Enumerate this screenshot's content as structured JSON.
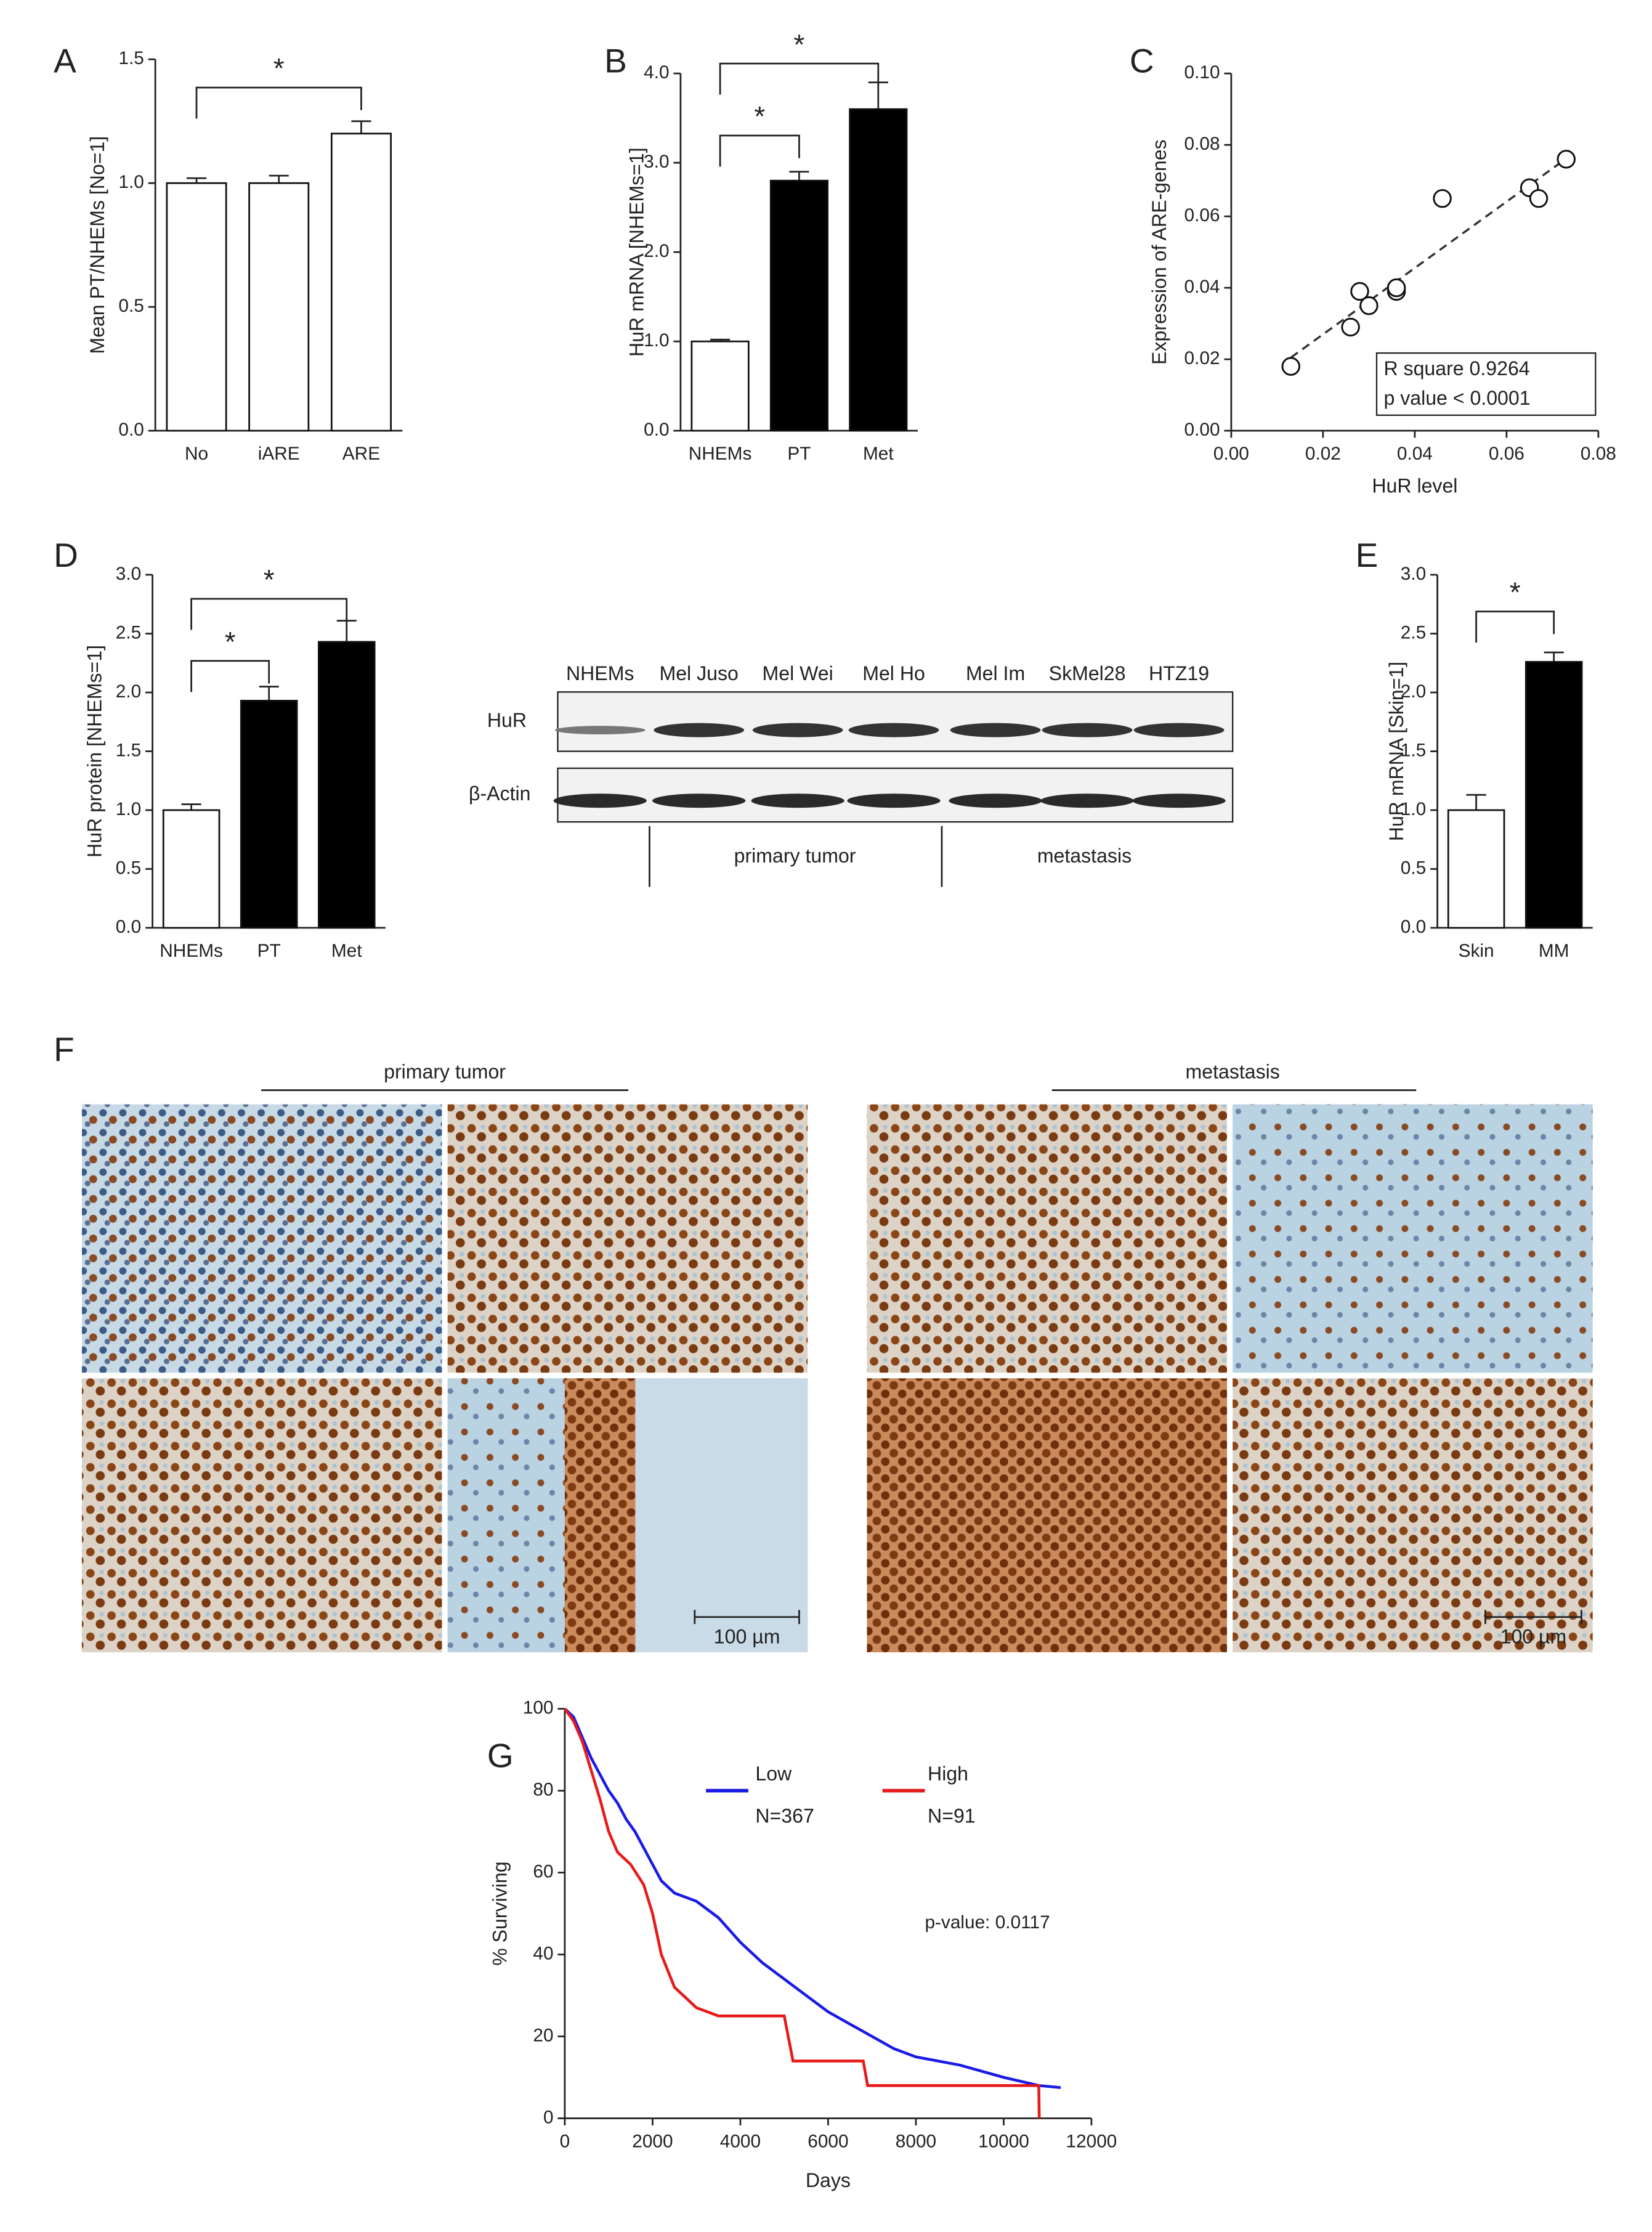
{
  "chart_data": [
    {
      "type": "bar",
      "panel": "A",
      "ylabel": "Mean PT/NHEMs [No=1]",
      "categories": [
        "No",
        "iARE",
        "ARE"
      ],
      "values": [
        1.0,
        1.0,
        1.2
      ],
      "errors": [
        0.02,
        0.03,
        0.05
      ],
      "colors": [
        "#ffffff",
        "#ffffff",
        "#ffffff"
      ],
      "ylim": [
        0,
        1.5
      ],
      "yticks": [
        {
          "value": 0,
          "label": "0.0"
        },
        0.5,
        {
          "value": 1,
          "label": "1.0"
        },
        1.5
      ],
      "annotations": [
        "*"
      ]
    },
    {
      "type": "bar",
      "panel": "B",
      "ylabel": "HuR mRNA [NHEMs=1]",
      "categories": [
        "NHEMs",
        "PT",
        "Met"
      ],
      "values": [
        1.0,
        2.8,
        3.6
      ],
      "errors": [
        0.02,
        0.1,
        0.3
      ],
      "colors": [
        "#ffffff",
        "#000000",
        "#000000"
      ],
      "ylim": [
        0,
        4
      ],
      "yticks": [
        {
          "value": 0,
          "label": "0.0"
        },
        {
          "value": 1,
          "label": "1.0"
        },
        {
          "value": 2,
          "label": "2.0"
        },
        {
          "value": 3,
          "label": "3.0"
        },
        {
          "value": 4,
          "label": "4.0"
        }
      ],
      "annotations": [
        "*",
        "*"
      ]
    },
    {
      "type": "scatter",
      "panel": "C",
      "xlabel": "HuR level",
      "ylabel": "Expression of ARE-genes",
      "x": [
        0.013,
        0.026,
        0.028,
        0.03,
        0.036,
        0.036,
        0.046,
        0.065,
        0.067,
        0.073
      ],
      "values": [
        0.018,
        0.029,
        0.039,
        0.035,
        0.039,
        0.04,
        0.065,
        0.068,
        0.065,
        0.076
      ],
      "xlim": [
        0,
        0.08
      ],
      "xticks": [
        {
          "value": 0,
          "label": "0.00"
        },
        {
          "value": 0.02,
          "label": "0.02"
        },
        {
          "value": 0.04,
          "label": "0.04"
        },
        {
          "value": 0.06,
          "label": "0.06"
        },
        {
          "value": 0.08,
          "label": "0.08"
        }
      ],
      "ylim": [
        0,
        0.1
      ],
      "yticks": [
        {
          "value": 0,
          "label": "0.00"
        },
        {
          "value": 0.02,
          "label": "0.02"
        },
        {
          "value": 0.04,
          "label": "0.04"
        },
        {
          "value": 0.06,
          "label": "0.06"
        },
        {
          "value": 0.08,
          "label": "0.08"
        },
        {
          "value": 0.1,
          "label": "0.10"
        }
      ],
      "annotations": [
        "R square 0.9264",
        "p value < 0.0001"
      ]
    },
    {
      "type": "bar",
      "panel": "D",
      "ylabel": "HuR protein [NHEMs=1]",
      "categories": [
        "NHEMs",
        "PT",
        "Met"
      ],
      "values": [
        1.0,
        1.93,
        2.43
      ],
      "errors": [
        0.05,
        0.12,
        0.18
      ],
      "colors": [
        "#ffffff",
        "#000000",
        "#000000"
      ],
      "ylim": [
        0,
        3
      ],
      "yticks": [
        {
          "value": 0,
          "label": "0.0"
        },
        0.5,
        {
          "value": 1,
          "label": "1.0"
        },
        1.5,
        {
          "value": 2,
          "label": "2.0"
        },
        2.5,
        {
          "value": 3,
          "label": "3.0"
        }
      ],
      "annotations": [
        "*",
        "*"
      ]
    },
    {
      "type": "bar",
      "panel": "E",
      "ylabel": "HuR mRNA [Skin=1]",
      "categories": [
        "Skin",
        "MM"
      ],
      "values": [
        1.0,
        2.26
      ],
      "errors": [
        0.13,
        0.08
      ],
      "colors": [
        "#ffffff",
        "#000000"
      ],
      "ylim": [
        0,
        3
      ],
      "yticks": [
        {
          "value": 0,
          "label": "0.0"
        },
        0.5,
        {
          "value": 1,
          "label": "1.0"
        },
        1.5,
        {
          "value": 2,
          "label": "2.0"
        },
        2.5,
        {
          "value": 3,
          "label": "3.0"
        }
      ],
      "annotations": [
        "*"
      ]
    },
    {
      "type": "line",
      "panel": "G",
      "xlabel": "Days",
      "ylabel": "% Surviving",
      "xlim": [
        0,
        12000
      ],
      "xticks": [
        0,
        2000,
        4000,
        6000,
        8000,
        10000,
        12000
      ],
      "ylim": [
        0,
        100
      ],
      "yticks": [
        0,
        20,
        40,
        60,
        80,
        100
      ],
      "annotations": [
        "p-value: 0.0117"
      ],
      "series": [
        {
          "name": "Low",
          "count_label": "N=367",
          "color": "#1a1ae6",
          "x": [
            0,
            200,
            400,
            600,
            800,
            1000,
            1200,
            1400,
            1600,
            1800,
            2000,
            2200,
            2500,
            3000,
            3500,
            4000,
            4500,
            5000,
            5500,
            6000,
            6500,
            7000,
            7500,
            8000,
            9000,
            10000,
            10800,
            11300
          ],
          "values": [
            100,
            98,
            93,
            88,
            84,
            80,
            77,
            73,
            70,
            66,
            62,
            58,
            55,
            53,
            49,
            43,
            38,
            34,
            30,
            26,
            23,
            20,
            17,
            15,
            13,
            10,
            8,
            7.5
          ]
        },
        {
          "name": "High",
          "count_label": "N=91",
          "color": "#e61a1a",
          "x": [
            0,
            200,
            400,
            600,
            800,
            1000,
            1200,
            1500,
            1800,
            2000,
            2200,
            2500,
            3000,
            3500,
            5000,
            5200,
            6800,
            6900,
            10800,
            10810
          ],
          "values": [
            100,
            97,
            92,
            85,
            78,
            70,
            65,
            62,
            57,
            50,
            40,
            32,
            27,
            25,
            25,
            14,
            14,
            8,
            8,
            0
          ]
        }
      ]
    }
  ],
  "blot": {
    "lanes": [
      "NHEMs",
      "Mel Juso",
      "Mel Wei",
      "Mel Ho",
      "Mel Im",
      "SkMel28",
      "HTZ19"
    ],
    "rows": [
      "HuR",
      "β-Actin"
    ],
    "groups": [
      "primary tumor",
      "metastasis"
    ]
  },
  "histology": {
    "panel": "F",
    "groups": [
      "primary tumor",
      "metastasis"
    ],
    "scale_bars": [
      "100 µm",
      "100 µm"
    ]
  }
}
